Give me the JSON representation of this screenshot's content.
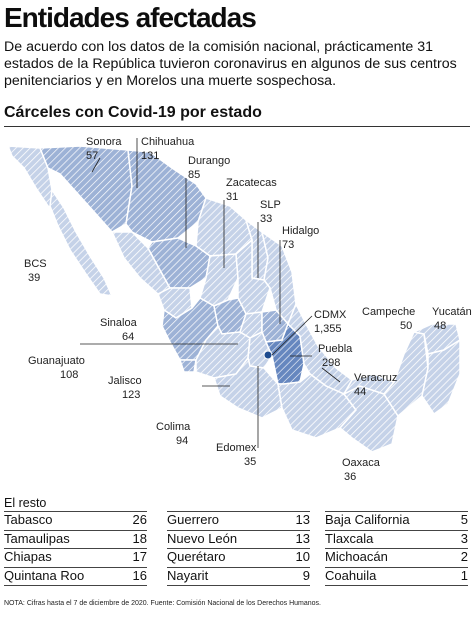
{
  "title": "Entidades afectadas",
  "intro": "De acuerdo con los datos de la comisión nacional, prácticamente 31 estados de la República tuvieron coronavirus en algunos de sus centros penitenciarios y en Morelos una muerte sospechosa.",
  "subtitle": "Cárceles con Covid-19 por estado",
  "map_labels": [
    {
      "state": "Sonora",
      "value": "57"
    },
    {
      "state": "Chihuahua",
      "value": "131"
    },
    {
      "state": "Durango",
      "value": "85"
    },
    {
      "state": "Zacatecas",
      "value": "31"
    },
    {
      "state": "SLP",
      "value": "33"
    },
    {
      "state": "Hidalgo",
      "value": "73"
    },
    {
      "state": "BCS",
      "value": "39"
    },
    {
      "state": "Sinaloa",
      "value": "64"
    },
    {
      "state": "CDMX",
      "value": "1,355"
    },
    {
      "state": "Campeche",
      "value": "50"
    },
    {
      "state": "Yucatán",
      "value": "48"
    },
    {
      "state": "Puebla",
      "value": "298"
    },
    {
      "state": "Guanajuato",
      "value": "108"
    },
    {
      "state": "Veracruz",
      "value": "44"
    },
    {
      "state": "Jalisco",
      "value": "123"
    },
    {
      "state": "Colima",
      "value": "94"
    },
    {
      "state": "Edomex",
      "value": "35"
    },
    {
      "state": "Oaxaca",
      "value": "36"
    }
  ],
  "resto": {
    "title": "El resto",
    "columns": [
      [
        {
          "state": "Tabasco",
          "value": "26"
        },
        {
          "state": "Tamaulipas",
          "value": "18"
        },
        {
          "state": "Chiapas",
          "value": "17"
        },
        {
          "state": "Quintana Roo",
          "value": "16"
        }
      ],
      [
        {
          "state": "Guerrero",
          "value": "13"
        },
        {
          "state": "Nuevo León",
          "value": "13"
        },
        {
          "state": "Querétaro",
          "value": "10"
        },
        {
          "state": "Nayarit",
          "value": "9"
        }
      ],
      [
        {
          "state": "Baja California",
          "value": "5"
        },
        {
          "state": "Tlaxcala",
          "value": "3"
        },
        {
          "state": "Michoacán",
          "value": "2"
        },
        {
          "state": "Coahuila",
          "value": "1"
        }
      ]
    ]
  },
  "note": "NOTA: Cifras hasta el 7 de diciembre de 2020. Fuente: Comisión Nacional de los Derechos Humanos.",
  "colors": {
    "light": "#c8d4e8",
    "mid": "#9fb4d6",
    "dark": "#5f7fb8",
    "hatch": "#ffffff",
    "leader": "#222222",
    "cdmx_dot": "#1d4b8f"
  }
}
